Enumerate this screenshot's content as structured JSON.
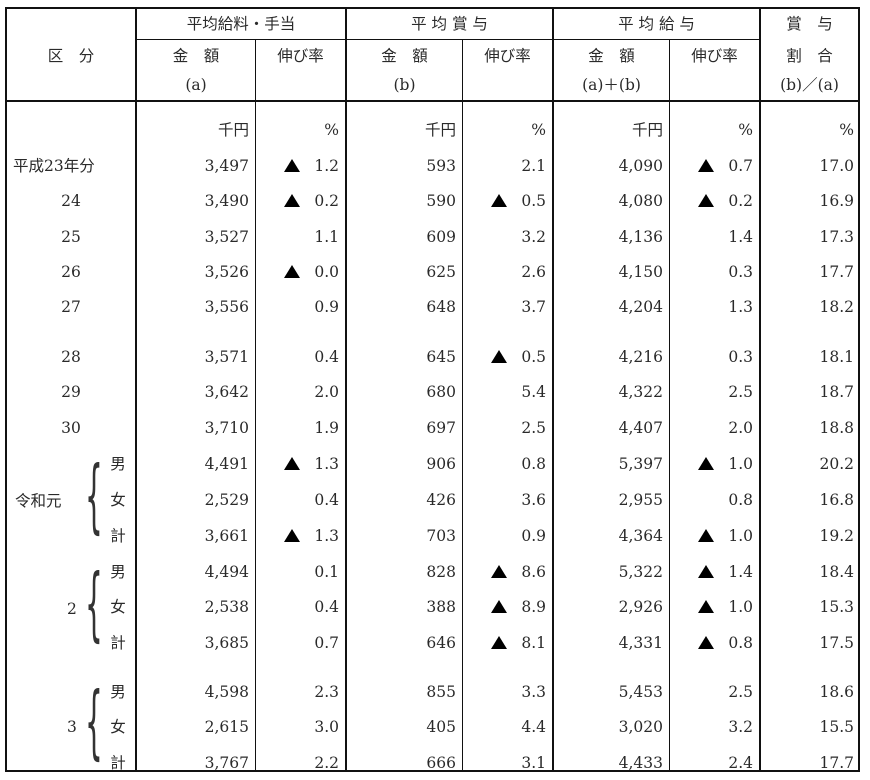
{
  "header": {
    "col_category": "区　分",
    "group_salary": "平均給料・手当",
    "group_bonus": "平 均 賞 与",
    "group_total": "平 均 給 与",
    "ratio_top": "賞　与",
    "ratio_mid": "割　合",
    "ratio_bot": "(b)／(a)",
    "amount": "金　額",
    "growth": "伸び率",
    "sub_a": "(a)",
    "sub_b": "(b)",
    "sub_ab": "(a)＋(b)"
  },
  "units": {
    "yen": "千円",
    "pct": "%"
  },
  "marker_note": "▲ indicates negative",
  "rows": [
    {
      "label": "平成23年分",
      "sal": "3,497",
      "sal_g": "1.2",
      "sal_neg": true,
      "bon": "593",
      "bon_g": "2.1",
      "bon_neg": false,
      "tot": "4,090",
      "tot_g": "0.7",
      "tot_neg": true,
      "ratio": "17.0"
    },
    {
      "label": "24",
      "sal": "3,490",
      "sal_g": "0.2",
      "sal_neg": true,
      "bon": "590",
      "bon_g": "0.5",
      "bon_neg": true,
      "tot": "4,080",
      "tot_g": "0.2",
      "tot_neg": true,
      "ratio": "16.9"
    },
    {
      "label": "25",
      "sal": "3,527",
      "sal_g": "1.1",
      "sal_neg": false,
      "bon": "609",
      "bon_g": "3.2",
      "bon_neg": false,
      "tot": "4,136",
      "tot_g": "1.4",
      "tot_neg": false,
      "ratio": "17.3"
    },
    {
      "label": "26",
      "sal": "3,526",
      "sal_g": "0.0",
      "sal_neg": true,
      "bon": "625",
      "bon_g": "2.6",
      "bon_neg": false,
      "tot": "4,150",
      "tot_g": "0.3",
      "tot_neg": false,
      "ratio": "17.7"
    },
    {
      "label": "27",
      "sal": "3,556",
      "sal_g": "0.9",
      "sal_neg": false,
      "bon": "648",
      "bon_g": "3.7",
      "bon_neg": false,
      "tot": "4,204",
      "tot_g": "1.3",
      "tot_neg": false,
      "ratio": "18.2"
    },
    {
      "label": "28",
      "sal": "3,571",
      "sal_g": "0.4",
      "sal_neg": false,
      "bon": "645",
      "bon_g": "0.5",
      "bon_neg": true,
      "tot": "4,216",
      "tot_g": "0.3",
      "tot_neg": false,
      "ratio": "18.1"
    },
    {
      "label": "29",
      "sal": "3,642",
      "sal_g": "2.0",
      "sal_neg": false,
      "bon": "680",
      "bon_g": "5.4",
      "bon_neg": false,
      "tot": "4,322",
      "tot_g": "2.5",
      "tot_neg": false,
      "ratio": "18.7"
    },
    {
      "label": "30",
      "sal": "3,710",
      "sal_g": "1.9",
      "sal_neg": false,
      "bon": "697",
      "bon_g": "2.5",
      "bon_neg": false,
      "tot": "4,407",
      "tot_g": "2.0",
      "tot_neg": false,
      "ratio": "18.8"
    },
    {
      "label": "男",
      "sal": "4,491",
      "sal_g": "1.3",
      "sal_neg": true,
      "bon": "906",
      "bon_g": "0.8",
      "bon_neg": false,
      "tot": "5,397",
      "tot_g": "1.0",
      "tot_neg": true,
      "ratio": "20.2"
    },
    {
      "label": "女",
      "sal": "2,529",
      "sal_g": "0.4",
      "sal_neg": false,
      "bon": "426",
      "bon_g": "3.6",
      "bon_neg": false,
      "tot": "2,955",
      "tot_g": "0.8",
      "tot_neg": false,
      "ratio": "16.8"
    },
    {
      "label": "計",
      "sal": "3,661",
      "sal_g": "1.3",
      "sal_neg": true,
      "bon": "703",
      "bon_g": "0.9",
      "bon_neg": false,
      "tot": "4,364",
      "tot_g": "1.0",
      "tot_neg": true,
      "ratio": "19.2"
    },
    {
      "label": "男",
      "sal": "4,494",
      "sal_g": "0.1",
      "sal_neg": false,
      "bon": "828",
      "bon_g": "8.6",
      "bon_neg": true,
      "tot": "5,322",
      "tot_g": "1.4",
      "tot_neg": true,
      "ratio": "18.4"
    },
    {
      "label": "女",
      "sal": "2,538",
      "sal_g": "0.4",
      "sal_neg": false,
      "bon": "388",
      "bon_g": "8.9",
      "bon_neg": true,
      "tot": "2,926",
      "tot_g": "1.0",
      "tot_neg": true,
      "ratio": "15.3"
    },
    {
      "label": "計",
      "sal": "3,685",
      "sal_g": "0.7",
      "sal_neg": false,
      "bon": "646",
      "bon_g": "8.1",
      "bon_neg": true,
      "tot": "4,331",
      "tot_g": "0.8",
      "tot_neg": true,
      "ratio": "17.5"
    },
    {
      "label": "男",
      "sal": "4,598",
      "sal_g": "2.3",
      "sal_neg": false,
      "bon": "855",
      "bon_g": "3.3",
      "bon_neg": false,
      "tot": "5,453",
      "tot_g": "2.5",
      "tot_neg": false,
      "ratio": "18.6"
    },
    {
      "label": "女",
      "sal": "2,615",
      "sal_g": "3.0",
      "sal_neg": false,
      "bon": "405",
      "bon_g": "4.4",
      "bon_neg": false,
      "tot": "3,020",
      "tot_g": "3.2",
      "tot_neg": false,
      "ratio": "15.5"
    },
    {
      "label": "計",
      "sal": "3,767",
      "sal_g": "2.2",
      "sal_neg": false,
      "bon": "666",
      "bon_g": "3.1",
      "bon_neg": false,
      "tot": "4,433",
      "tot_g": "2.4",
      "tot_neg": false,
      "ratio": "17.7"
    }
  ],
  "groups": [
    {
      "label": "令和元"
    },
    {
      "label": "2"
    },
    {
      "label": "3"
    }
  ]
}
